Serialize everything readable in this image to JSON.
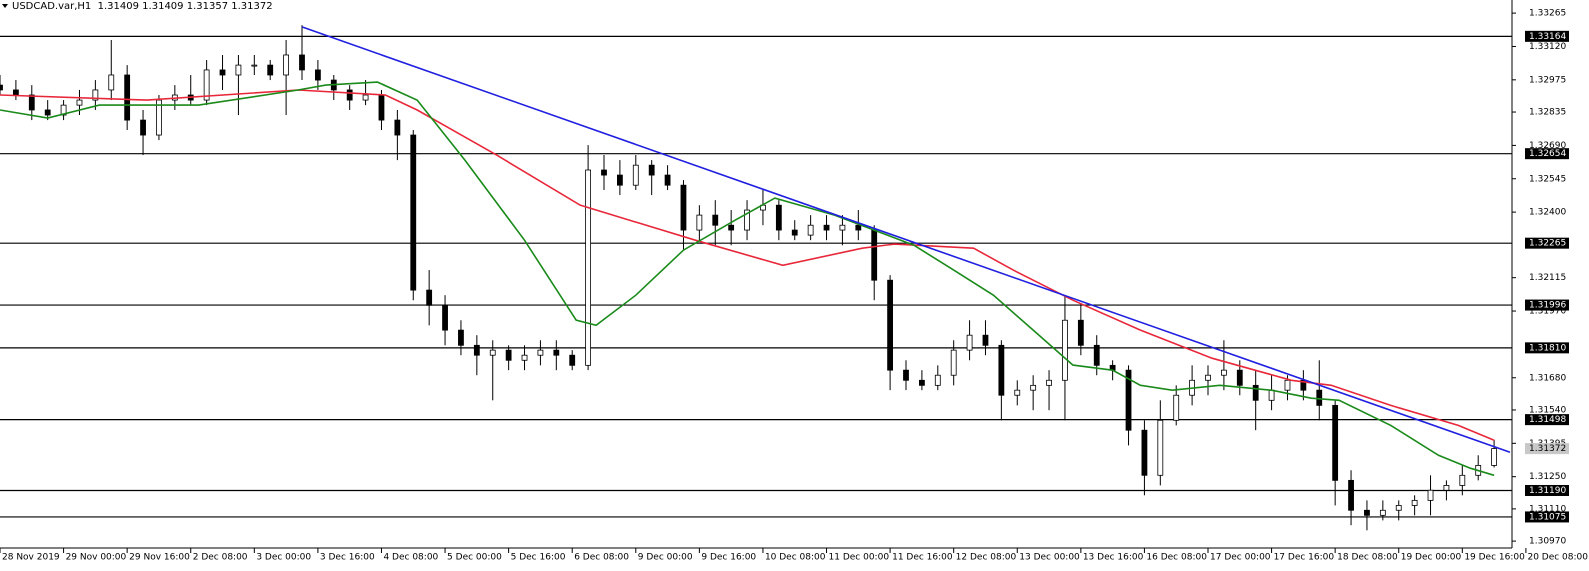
{
  "chart_data": {
    "type": "candlestick",
    "title": "USDCAD.var,H1  1.31409 1.31409 1.31357 1.31372",
    "xlim": [
      0,
      380
    ],
    "ylim": [
      1.3094,
      1.33322
    ],
    "x": [
      0,
      4,
      8,
      12,
      16,
      20,
      24,
      28,
      32,
      36,
      40,
      44,
      48,
      52,
      56,
      60,
      64,
      68,
      72,
      76,
      80,
      84,
      88,
      92,
      96,
      100,
      104,
      108,
      112,
      116,
      120,
      124,
      128,
      132,
      136,
      140,
      144,
      148,
      152,
      156,
      160,
      164,
      168,
      172,
      176,
      180,
      184,
      188,
      192,
      196,
      200,
      204,
      208,
      212,
      216,
      220,
      224,
      228,
      232,
      236,
      240,
      244,
      248,
      252,
      256,
      260,
      264,
      268,
      272,
      276,
      280,
      284,
      288,
      292,
      296,
      300,
      304,
      308,
      312,
      316,
      320,
      324,
      328,
      332,
      336,
      340,
      344,
      348,
      352,
      356,
      360,
      364,
      368,
      372,
      376
    ],
    "open": [
      1.32952,
      1.32931,
      1.32909,
      1.32844,
      1.32822,
      1.32865,
      1.32887,
      1.32931,
      1.32996,
      1.328,
      1.32735,
      1.32887,
      1.32909,
      1.32887,
      1.33018,
      1.32996,
      1.33039,
      1.33039,
      1.32996,
      1.33083,
      1.33018,
      1.32974,
      1.32931,
      1.32887,
      1.32909,
      1.328,
      1.32735,
      1.32061,
      1.31995,
      1.31887,
      1.31821,
      1.31778,
      1.318,
      1.31756,
      1.31778,
      1.318,
      1.31778,
      1.31734,
      1.32583,
      1.32561,
      1.32517,
      1.32604,
      1.32561,
      1.32517,
      1.32322,
      1.32387,
      1.32343,
      1.32322,
      1.32409,
      1.3243,
      1.32322,
      1.323,
      1.32343,
      1.32322,
      1.32343,
      1.32322,
      1.32104,
      1.31713,
      1.31669,
      1.31647,
      1.31691,
      1.318,
      1.31865,
      1.31821,
      1.31604,
      1.31626,
      1.31647,
      1.31669,
      1.3193,
      1.31821,
      1.31734,
      1.31713,
      1.31452,
      1.31256,
      1.31495,
      1.31604,
      1.31669,
      1.31691,
      1.31713,
      1.31647,
      1.31582,
      1.31626,
      1.31669,
      1.31626,
      1.3156,
      1.31234,
      1.31104,
      1.31082,
      1.31104,
      1.31125,
      1.31147,
      1.31191,
      1.31212,
      1.31256,
      1.31299
    ],
    "high": [
      1.32996,
      1.32974,
      1.32952,
      1.32887,
      1.32887,
      1.32931,
      1.32974,
      1.33148,
      1.33039,
      1.32844,
      1.32909,
      1.32952,
      1.32996,
      1.33061,
      1.33083,
      1.33083,
      1.33083,
      1.33061,
      1.33148,
      1.33213,
      1.33061,
      1.32996,
      1.32952,
      1.32974,
      1.32931,
      1.32844,
      1.32757,
      1.32148,
      1.32039,
      1.3193,
      1.31865,
      1.31843,
      1.31821,
      1.31821,
      1.31843,
      1.31843,
      1.318,
      1.32691,
      1.32648,
      1.32626,
      1.32648,
      1.32626,
      1.32604,
      1.32539,
      1.3243,
      1.32452,
      1.32409,
      1.32452,
      1.32496,
      1.32452,
      1.32365,
      1.32387,
      1.32387,
      1.32387,
      1.32409,
      1.32343,
      1.32126,
      1.31756,
      1.31713,
      1.31734,
      1.31843,
      1.3193,
      1.3193,
      1.31843,
      1.31669,
      1.31691,
      1.31713,
      1.32039,
      1.31995,
      1.31865,
      1.31756,
      1.31734,
      1.31495,
      1.31582,
      1.31647,
      1.31734,
      1.31734,
      1.31843,
      1.31756,
      1.31713,
      1.31691,
      1.31691,
      1.31713,
      1.31756,
      1.31582,
      1.31278,
      1.31147,
      1.31147,
      1.31147,
      1.31169,
      1.31256,
      1.31234,
      1.31299,
      1.31343,
      1.31409
    ],
    "low": [
      1.32909,
      1.32887,
      1.328,
      1.328,
      1.328,
      1.32822,
      1.32844,
      1.32887,
      1.32757,
      1.32648,
      1.32713,
      1.32844,
      1.32865,
      1.32865,
      1.32931,
      1.32822,
      1.32996,
      1.32974,
      1.32822,
      1.32974,
      1.32931,
      1.32887,
      1.32844,
      1.32865,
      1.32757,
      1.32626,
      1.32017,
      1.31908,
      1.31821,
      1.31778,
      1.31691,
      1.31582,
      1.31713,
      1.31713,
      1.31734,
      1.31713,
      1.31713,
      1.31713,
      1.32496,
      1.32474,
      1.32496,
      1.32474,
      1.32496,
      1.32235,
      1.32278,
      1.32256,
      1.32256,
      1.32278,
      1.32343,
      1.32278,
      1.32278,
      1.32278,
      1.32278,
      1.32256,
      1.32278,
      1.32017,
      1.31626,
      1.31626,
      1.31626,
      1.31626,
      1.31647,
      1.31756,
      1.31778,
      1.31495,
      1.3156,
      1.31539,
      1.31539,
      1.31495,
      1.31778,
      1.31691,
      1.31669,
      1.31386,
      1.31169,
      1.31212,
      1.31473,
      1.3156,
      1.31604,
      1.31626,
      1.31604,
      1.31452,
      1.31539,
      1.31582,
      1.31582,
      1.31495,
      1.31125,
      1.31039,
      1.31017,
      1.3106,
      1.3106,
      1.31082,
      1.31082,
      1.31147,
      1.31169,
      1.31234,
      1.3129
    ],
    "close": [
      1.32931,
      1.32909,
      1.32844,
      1.32822,
      1.32865,
      1.32887,
      1.32931,
      1.32996,
      1.328,
      1.32735,
      1.32887,
      1.32909,
      1.32887,
      1.33018,
      1.32996,
      1.33039,
      1.33039,
      1.32996,
      1.33083,
      1.33018,
      1.32974,
      1.32931,
      1.32887,
      1.32909,
      1.328,
      1.32735,
      1.32061,
      1.31995,
      1.31887,
      1.31821,
      1.31778,
      1.318,
      1.31756,
      1.31778,
      1.318,
      1.31778,
      1.31734,
      1.32583,
      1.32561,
      1.32517,
      1.32604,
      1.32561,
      1.32517,
      1.32322,
      1.32387,
      1.32343,
      1.32322,
      1.32409,
      1.3243,
      1.32322,
      1.323,
      1.32343,
      1.32322,
      1.32343,
      1.32322,
      1.32104,
      1.31713,
      1.31669,
      1.31647,
      1.31691,
      1.318,
      1.31865,
      1.31821,
      1.31604,
      1.31626,
      1.31647,
      1.31669,
      1.3193,
      1.31821,
      1.31734,
      1.31713,
      1.31452,
      1.31256,
      1.31495,
      1.31604,
      1.31669,
      1.31691,
      1.31713,
      1.31647,
      1.31582,
      1.31626,
      1.31669,
      1.31626,
      1.3156,
      1.31234,
      1.31104,
      1.31082,
      1.31104,
      1.31125,
      1.31147,
      1.31191,
      1.31212,
      1.31256,
      1.31299,
      1.31372
    ],
    "overlays": [
      {
        "color": "#e8283a",
        "x": [
          0,
          37,
          75,
          97,
          105,
          125,
          146,
          175,
          197,
          217,
          225,
          245,
          255,
          270,
          287,
          305,
          325,
          335,
          350,
          367,
          376
        ],
        "values": [
          1.32909,
          1.32887,
          1.32931,
          1.32909,
          1.32844,
          1.32648,
          1.3243,
          1.32278,
          1.32169,
          1.32243,
          1.32261,
          1.32243,
          1.32148,
          1.32017,
          1.31887,
          1.31765,
          1.31669,
          1.31647,
          1.3156,
          1.31473,
          1.31408
        ]
      },
      {
        "color": "#1a8a1a",
        "x": [
          0,
          12,
          25,
          50,
          75,
          82,
          95,
          105,
          117,
          132,
          145,
          150,
          160,
          172,
          185,
          195,
          210,
          220,
          230,
          240,
          250,
          260,
          270,
          280,
          287,
          295,
          307,
          320,
          330,
          337,
          350,
          362,
          370,
          376
        ],
        "values": [
          1.32844,
          1.32809,
          1.32865,
          1.32865,
          1.32931,
          1.32952,
          1.32965,
          1.32887,
          1.32626,
          1.32278,
          1.3193,
          1.31908,
          1.32039,
          1.32235,
          1.32365,
          1.32461,
          1.32387,
          1.32322,
          1.32256,
          1.32148,
          1.32039,
          1.31887,
          1.31735,
          1.31713,
          1.31647,
          1.31626,
          1.31647,
          1.31626,
          1.31591,
          1.31582,
          1.31473,
          1.31343,
          1.31287,
          1.31256
        ]
      },
      {
        "color": "#1f1fe0",
        "x": [
          76,
          380
        ],
        "values": [
          1.33205,
          1.31356
        ]
      }
    ],
    "levels": [
      1.33164,
      1.32654,
      1.32265,
      1.31996,
      {
        "value": 1.3181,
        "label": "1.31810"
      },
      1.31498,
      {
        "value": 1.3119,
        "label": "1.31190"
      },
      1.31075
    ],
    "last_price": 1.31372,
    "yticks": [
      1.33265,
      {
        "value": 1.3312,
        "label": "1.33120"
      },
      1.32975,
      1.32835,
      {
        "value": 1.3269,
        "label": "1.32690"
      },
      1.32545,
      {
        "value": 1.324,
        "label": "1.32400"
      },
      1.32115,
      {
        "value": 1.3197,
        "label": "1.31970"
      },
      {
        "value": 1.3168,
        "label": "1.31680"
      },
      {
        "value": 1.3154,
        "label": "1.31540"
      },
      1.31395,
      {
        "value": 1.3125,
        "label": "1.31250"
      },
      {
        "value": 1.3111,
        "label": "1.31110"
      },
      {
        "value": 1.3097,
        "label": "1.30970"
      }
    ],
    "xticks": [
      {
        "value": 0,
        "label": "28 Nov 2019"
      },
      {
        "value": 16,
        "label": "29 Nov 00:00"
      },
      {
        "value": 32,
        "label": "29 Nov 16:00"
      },
      {
        "value": 48,
        "label": "2 Dec 08:00"
      },
      {
        "value": 64,
        "label": "3 Dec 00:00"
      },
      {
        "value": 80,
        "label": "3 Dec 16:00"
      },
      {
        "value": 96,
        "label": "4 Dec 08:00"
      },
      {
        "value": 112,
        "label": "5 Dec 00:00"
      },
      {
        "value": 128,
        "label": "5 Dec 16:00"
      },
      {
        "value": 144,
        "label": "6 Dec 08:00"
      },
      {
        "value": 160,
        "label": "9 Dec 00:00"
      },
      {
        "value": 176,
        "label": "9 Dec 16:00"
      },
      {
        "value": 192,
        "label": "10 Dec 08:00"
      },
      {
        "value": 208,
        "label": "11 Dec 00:00"
      },
      {
        "value": 224,
        "label": "11 Dec 16:00"
      },
      {
        "value": 240,
        "label": "12 Dec 08:00"
      },
      {
        "value": 256,
        "label": "13 Dec 00:00"
      },
      {
        "value": 272,
        "label": "13 Dec 16:00"
      },
      {
        "value": 288,
        "label": "16 Dec 08:00"
      },
      {
        "value": 304,
        "label": "17 Dec 00:00"
      },
      {
        "value": 320,
        "label": "17 Dec 16:00"
      },
      {
        "value": 336,
        "label": "18 Dec 08:00"
      },
      {
        "value": 352,
        "label": "19 Dec 00:00"
      },
      {
        "value": 368,
        "label": "19 Dec 16:00"
      },
      {
        "value": 384,
        "label": "20 Dec 08:00"
      }
    ]
  }
}
